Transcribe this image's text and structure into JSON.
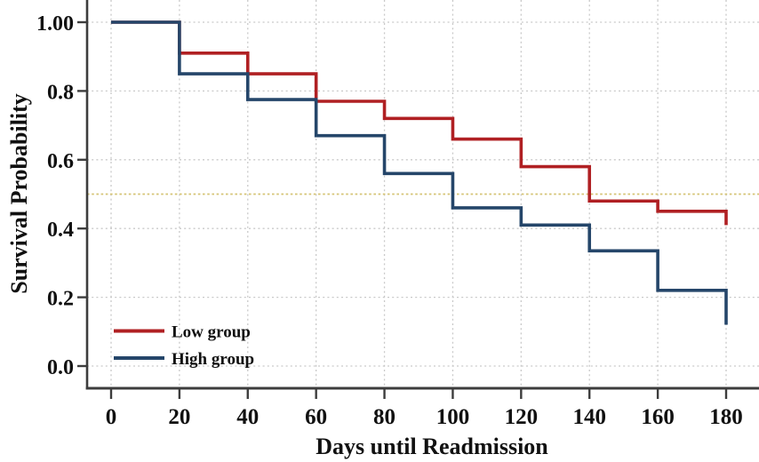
{
  "chart_data": {
    "type": "line",
    "variant": "kaplan-meier-step-survival",
    "title": "",
    "xlabel": "Days until Readmission",
    "ylabel": "Survival Probability",
    "xlim": [
      0,
      180
    ],
    "ylim": [
      0.0,
      1.0
    ],
    "x_ticks": [
      0,
      20,
      40,
      60,
      80,
      100,
      120,
      140,
      160,
      180
    ],
    "x_tick_labels": [
      "0",
      "20",
      "40",
      "60",
      "80",
      "100",
      "120",
      "140",
      "160",
      "180"
    ],
    "y_ticks": [
      0.0,
      0.2,
      0.4,
      0.6,
      0.8,
      1.0
    ],
    "y_tick_labels": [
      "0.0",
      "0.2",
      "0.4",
      "0.6",
      "0.8",
      "1.00"
    ],
    "grid": "dotted",
    "grid_color": "#c9c9c9",
    "axis_color": "#3d3d3d",
    "text_color": "#111111",
    "reference_line": {
      "y": 0.5,
      "color": "#d5c475",
      "style": "dotted"
    },
    "legend_position": "lower-left",
    "series": [
      {
        "name": "Low group",
        "color": "#b02023",
        "x": [
          0,
          20,
          40,
          60,
          80,
          100,
          120,
          140,
          160,
          180
        ],
        "y": [
          1.0,
          0.91,
          0.85,
          0.77,
          0.72,
          0.66,
          0.58,
          0.48,
          0.45,
          0.41
        ]
      },
      {
        "name": "High group",
        "color": "#25466a",
        "x": [
          0,
          20,
          40,
          60,
          80,
          100,
          120,
          140,
          160,
          180
        ],
        "y": [
          1.0,
          0.85,
          0.775,
          0.67,
          0.56,
          0.46,
          0.41,
          0.335,
          0.22,
          0.12
        ]
      }
    ],
    "legend": [
      {
        "label": "Low group",
        "color": "#b02023"
      },
      {
        "label": "High group",
        "color": "#25466a"
      }
    ]
  }
}
